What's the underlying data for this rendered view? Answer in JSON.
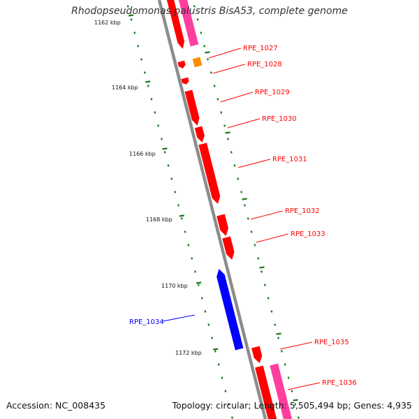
{
  "title": "Rhodopseudomonas palustris BisA53, complete genome",
  "footer": {
    "accession": "Accession: NC_008435",
    "topology": "Topology: circular; Length: 5,505,494 bp; Genes: 4,935"
  },
  "colors": {
    "forward_gene": "#ff0000",
    "reverse_gene": "#0000ff",
    "other_feature": "#ff8c00",
    "pink_feature": "#ff3fa0",
    "backbone": "#8c8c8c",
    "tick": "#1a7a1a"
  },
  "scale": {
    "labels": [
      "1162 kbp",
      "1164 kbp",
      "1166 kbp",
      "1168 kbp",
      "1170 kbp",
      "1172 kbp"
    ]
  },
  "genes": [
    {
      "label": "RPE_1027",
      "strand": "forward"
    },
    {
      "label": "RPE_1028",
      "strand": "forward"
    },
    {
      "label": "RPE_1029",
      "strand": "forward"
    },
    {
      "label": "RPE_1030",
      "strand": "forward"
    },
    {
      "label": "RPE_1031",
      "strand": "forward"
    },
    {
      "label": "RPE_1032",
      "strand": "forward"
    },
    {
      "label": "RPE_1033",
      "strand": "forward"
    },
    {
      "label": "RPE_1034",
      "strand": "reverse"
    },
    {
      "label": "RPE_1035",
      "strand": "forward"
    },
    {
      "label": "RPE_1036",
      "strand": "forward"
    }
  ]
}
